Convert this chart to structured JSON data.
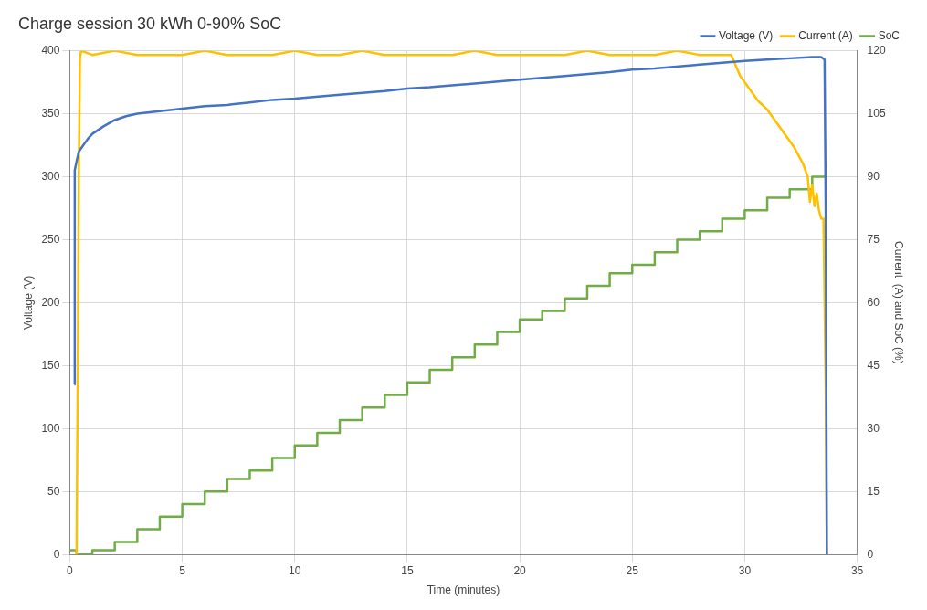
{
  "chart_data": {
    "type": "line",
    "title": "Charge session 30 kWh 0-90% SoC",
    "xlabel": "Time (minutes)",
    "ylabel": "Voltage (V)",
    "y2label": "Current  (A) and SoC (%)",
    "xlim": [
      0,
      35
    ],
    "xticks": [
      0,
      5,
      10,
      15,
      20,
      25,
      30,
      35
    ],
    "ylim": [
      0,
      400
    ],
    "yticks": [
      0,
      50,
      100,
      150,
      200,
      250,
      300,
      350,
      400
    ],
    "y2lim": [
      0,
      120
    ],
    "y2ticks": [
      0,
      15,
      30,
      45,
      60,
      75,
      90,
      105,
      120
    ],
    "grid": true,
    "legend": "top right",
    "marker": "none",
    "line_style": "solid",
    "series": [
      {
        "name": "Voltage (V)",
        "color": "#4472c4",
        "x": [
          0.2,
          0.22,
          0.3,
          0.4,
          0.6,
          0.8,
          1,
          1.5,
          2,
          2.5,
          3,
          4,
          5,
          6,
          7,
          8,
          9,
          10,
          12,
          14,
          15,
          16,
          18,
          20,
          22,
          24,
          25,
          26,
          28,
          30,
          31,
          32,
          33,
          33.4,
          33.55,
          33.6,
          33.65
        ],
        "values": [
          135,
          305,
          312,
          320,
          325,
          330,
          334,
          340,
          345,
          348,
          350,
          352,
          354,
          356,
          357,
          359,
          361,
          362,
          365,
          368,
          370,
          371,
          374,
          377,
          380,
          383,
          385,
          386,
          389,
          392,
          393,
          394,
          395,
          395,
          393,
          275,
          0
        ]
      },
      {
        "name": "Current (A)",
        "color": "#ffc000",
        "axis": "y2",
        "x": [
          0.3,
          0.35,
          0.4,
          0.45,
          0.5,
          1,
          2,
          3,
          4,
          5,
          6,
          7,
          8,
          9,
          10,
          11,
          12,
          13,
          14,
          15,
          16,
          17,
          18,
          19,
          20,
          21,
          22,
          23,
          24,
          25,
          26,
          27,
          28,
          29,
          29.4,
          29.8,
          30.2,
          30.6,
          31,
          31.4,
          31.8,
          32.2,
          32.6,
          32.8,
          32.9,
          33,
          33.1,
          33.2,
          33.3,
          33.4,
          33.5,
          33.6,
          33.65
        ],
        "values": [
          0,
          40,
          90,
          118,
          120,
          119,
          120,
          119,
          119,
          119,
          120,
          119,
          119,
          119,
          120,
          119,
          119,
          120,
          119,
          119,
          119,
          119,
          120,
          119,
          119,
          119,
          119,
          120,
          119,
          119,
          119,
          120,
          119,
          119,
          119,
          114,
          111,
          108,
          106,
          103,
          100,
          97,
          93,
          90,
          84,
          88,
          83,
          86,
          82,
          80,
          80,
          40,
          0
        ]
      },
      {
        "name": "SoC",
        "type": "step",
        "color": "#70ad47",
        "axis": "y2",
        "x": [
          0,
          0.3,
          0.6,
          1,
          2,
          3,
          4,
          5,
          6,
          7,
          8,
          9,
          10,
          11,
          12,
          13,
          14,
          15,
          16,
          17,
          18,
          19,
          20,
          21,
          22,
          23,
          24,
          25,
          26,
          27,
          28,
          29,
          30,
          31,
          32,
          33,
          33.6
        ],
        "values": [
          1,
          0,
          0,
          1,
          3,
          6,
          9,
          12,
          15,
          18,
          20,
          23,
          26,
          29,
          32,
          35,
          38,
          41,
          44,
          47,
          50,
          53,
          56,
          58,
          61,
          64,
          67,
          69,
          72,
          75,
          77,
          80,
          82,
          85,
          87,
          90,
          90
        ]
      }
    ]
  }
}
